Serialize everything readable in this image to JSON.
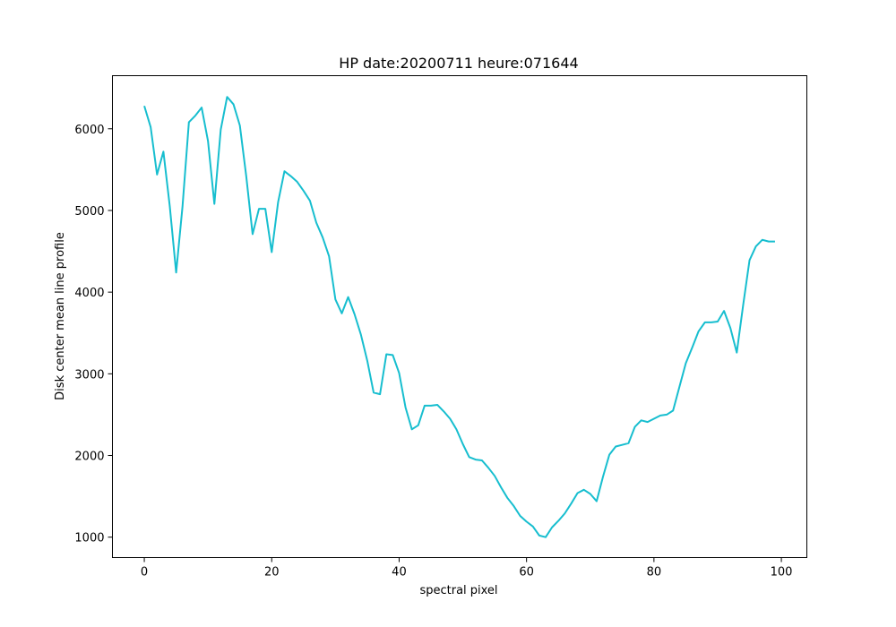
{
  "chart_data": {
    "type": "line",
    "title": "HP date:20200711 heure:071644",
    "xlabel": "spectral pixel",
    "ylabel": "Disk center mean line profile",
    "xlim": [
      -5,
      104
    ],
    "ylim": [
      750,
      6650
    ],
    "xticks": [
      0,
      20,
      40,
      60,
      80,
      100
    ],
    "yticks": [
      1000,
      2000,
      3000,
      4000,
      5000,
      6000
    ],
    "grid": false,
    "line_color": "#17becf",
    "series": [
      {
        "x": [
          0,
          1,
          2,
          3,
          4,
          5,
          6,
          7,
          8,
          9,
          10,
          11,
          12,
          13,
          14,
          15,
          16,
          17,
          18,
          19,
          20,
          21,
          22,
          23,
          24,
          25,
          26,
          27,
          28,
          29,
          30,
          31,
          32,
          33,
          34,
          35,
          36,
          37,
          38,
          39,
          40,
          41,
          42,
          43,
          44,
          45,
          46,
          47,
          48,
          49,
          50,
          51,
          52,
          53,
          54,
          55,
          56,
          57,
          58,
          59,
          60,
          61,
          62,
          63,
          64,
          65,
          66,
          67,
          68,
          69,
          70,
          71,
          72,
          73,
          74,
          75,
          76,
          77,
          78,
          79,
          80,
          81,
          82,
          83,
          84,
          85,
          86,
          87,
          88,
          89,
          90,
          91,
          92,
          93,
          94,
          95,
          96,
          97,
          98,
          99
        ],
        "values": [
          6280,
          6020,
          5440,
          5720,
          5050,
          4240,
          5050,
          6080,
          6160,
          6260,
          5850,
          5080,
          5990,
          6390,
          6300,
          6040,
          5420,
          4710,
          5020,
          5020,
          4490,
          5100,
          5480,
          5420,
          5350,
          5240,
          5120,
          4850,
          4670,
          4440,
          3910,
          3740,
          3940,
          3730,
          3480,
          3160,
          2770,
          2750,
          3240,
          3230,
          3010,
          2590,
          2320,
          2370,
          2610,
          2610,
          2620,
          2540,
          2450,
          2320,
          2140,
          1980,
          1950,
          1940,
          1850,
          1750,
          1610,
          1480,
          1380,
          1260,
          1190,
          1130,
          1020,
          1000,
          1120,
          1200,
          1290,
          1410,
          1540,
          1580,
          1530,
          1440,
          1740,
          2010,
          2110,
          2130,
          2150,
          2350,
          2430,
          2410,
          2450,
          2490,
          2500,
          2550,
          2840,
          3130,
          3320,
          3520,
          3630,
          3630,
          3640,
          3770,
          3560,
          3260,
          3840,
          4390,
          4560,
          4640,
          4620,
          4620
        ]
      }
    ]
  }
}
